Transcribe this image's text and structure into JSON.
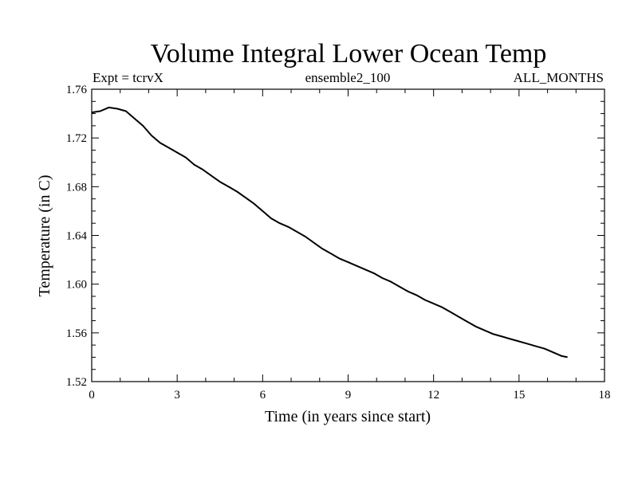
{
  "chart_data": {
    "type": "line",
    "title": "Volume Integral Lower Ocean Temp",
    "subtitle_left": "Expt = tcrvX",
    "subtitle_center": "ensemble2_100",
    "subtitle_right": "ALL_MONTHS",
    "xlabel": "Time (in years since start)",
    "ylabel": "Temperature (in C)",
    "xlim": [
      0,
      18
    ],
    "ylim": [
      1.52,
      1.76
    ],
    "x_ticks": [
      "0",
      "3",
      "6",
      "9",
      "12",
      "15",
      "18"
    ],
    "y_ticks": [
      "1.52",
      "1.56",
      "1.60",
      "1.64",
      "1.68",
      "1.72",
      "1.76"
    ],
    "grid": false,
    "series": [
      {
        "x": [
          0.0,
          0.3,
          0.6,
          0.9,
          1.2,
          1.5,
          1.8,
          2.1,
          2.4,
          2.7,
          3.0,
          3.3,
          3.6,
          3.9,
          4.2,
          4.5,
          4.8,
          5.1,
          5.4,
          5.7,
          6.0,
          6.3,
          6.6,
          6.9,
          7.2,
          7.5,
          7.8,
          8.1,
          8.4,
          8.7,
          9.0,
          9.3,
          9.6,
          9.9,
          10.2,
          10.5,
          10.8,
          11.1,
          11.4,
          11.7,
          12.0,
          12.3,
          12.6,
          12.9,
          13.2,
          13.5,
          13.8,
          14.1,
          14.4,
          14.7,
          15.0,
          15.3,
          15.6,
          15.9,
          16.2,
          16.5,
          16.7
        ],
        "y": [
          1.741,
          1.742,
          1.745,
          1.744,
          1.742,
          1.736,
          1.73,
          1.722,
          1.716,
          1.712,
          1.708,
          1.704,
          1.698,
          1.694,
          1.689,
          1.684,
          1.68,
          1.676,
          1.671,
          1.666,
          1.66,
          1.654,
          1.65,
          1.647,
          1.643,
          1.639,
          1.634,
          1.629,
          1.625,
          1.621,
          1.618,
          1.615,
          1.612,
          1.609,
          1.605,
          1.602,
          1.598,
          1.594,
          1.591,
          1.587,
          1.584,
          1.581,
          1.577,
          1.573,
          1.569,
          1.565,
          1.562,
          1.559,
          1.557,
          1.555,
          1.553,
          1.551,
          1.549,
          1.547,
          1.544,
          1.541,
          1.54
        ]
      }
    ]
  }
}
